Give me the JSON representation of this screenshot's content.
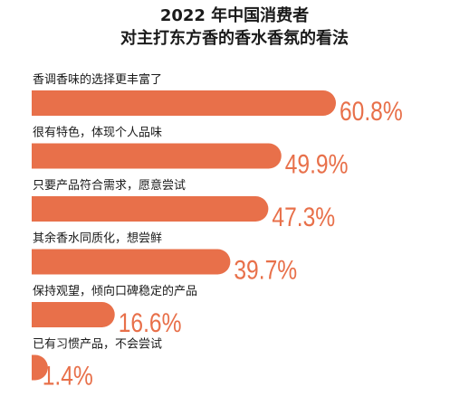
{
  "chart_data": {
    "type": "bar",
    "orientation": "horizontal",
    "title": "2022 年中国消费者",
    "subtitle": "对主打东方香的香水香氛的看法",
    "categories": [
      "香调香味的选择更丰富了",
      "很有特色，体现个人品味",
      "只要产品符合需求，愿意尝试",
      "其余香水同质化，想尝鲜",
      "保持观望，倾向口碑稳定的产品",
      "已有习惯产品，不会尝试"
    ],
    "values": [
      60.8,
      49.9,
      47.3,
      39.7,
      16.6,
      1.4
    ],
    "value_labels": [
      "60.8%",
      "49.9%",
      "47.3%",
      "39.7%",
      "16.6%",
      "1.4%"
    ],
    "unit": "%",
    "xlim": [
      0,
      60.8
    ],
    "grid": false,
    "legend": "none",
    "colors": {
      "bar": "#E8704A",
      "text": "#1a1a1a"
    }
  }
}
